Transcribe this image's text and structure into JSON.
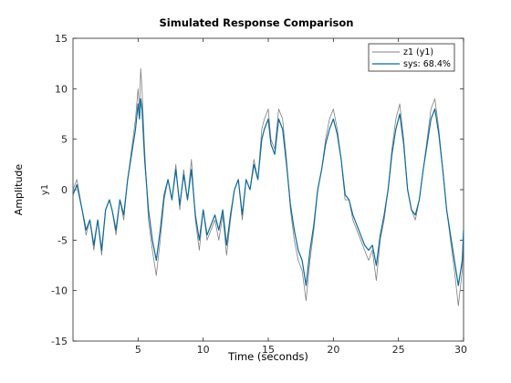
{
  "chart_data": {
    "type": "line",
    "title": "Simulated Response Comparison",
    "xlabel": "Time (seconds)",
    "ylabel": "Amplitude",
    "channel_label": "y1",
    "xlim": [
      0,
      30
    ],
    "ylim": [
      -15,
      15
    ],
    "x_ticks": [
      5,
      10,
      15,
      20,
      25,
      30
    ],
    "y_ticks": [
      15,
      10,
      5,
      0,
      -5,
      -10,
      -15
    ],
    "grid": false,
    "legend": "top-right",
    "series": [
      {
        "name": "z1 (y1)",
        "color": "#808080",
        "points": [
          [
            0,
            0
          ],
          [
            0.3,
            1
          ],
          [
            0.7,
            -2
          ],
          [
            1,
            -4.5
          ],
          [
            1.3,
            -3
          ],
          [
            1.6,
            -6
          ],
          [
            1.9,
            -3
          ],
          [
            2.2,
            -6.5
          ],
          [
            2.5,
            -2
          ],
          [
            2.8,
            -1
          ],
          [
            3,
            -2
          ],
          [
            3.3,
            -4.5
          ],
          [
            3.6,
            -1
          ],
          [
            3.9,
            -3
          ],
          [
            4.2,
            1
          ],
          [
            4.5,
            4
          ],
          [
            4.8,
            7
          ],
          [
            5,
            10
          ],
          [
            5.1,
            8
          ],
          [
            5.2,
            12
          ],
          [
            5.3,
            10
          ],
          [
            5.5,
            4
          ],
          [
            5.8,
            -3
          ],
          [
            6.1,
            -6
          ],
          [
            6.4,
            -8.5
          ],
          [
            6.7,
            -5
          ],
          [
            7,
            -1
          ],
          [
            7.3,
            1
          ],
          [
            7.6,
            -1
          ],
          [
            7.9,
            2.5
          ],
          [
            8.2,
            -2
          ],
          [
            8.5,
            2
          ],
          [
            8.8,
            -1
          ],
          [
            9.1,
            3
          ],
          [
            9.4,
            -3
          ],
          [
            9.7,
            -6
          ],
          [
            10,
            -2
          ],
          [
            10.3,
            -5
          ],
          [
            10.6,
            -4
          ],
          [
            10.9,
            -3
          ],
          [
            11.2,
            -5
          ],
          [
            11.5,
            -2.5
          ],
          [
            11.8,
            -6.5
          ],
          [
            12.1,
            -3
          ],
          [
            12.4,
            0
          ],
          [
            12.7,
            1
          ],
          [
            13,
            -3
          ],
          [
            13.3,
            1
          ],
          [
            13.6,
            0
          ],
          [
            13.9,
            3
          ],
          [
            14.2,
            1
          ],
          [
            14.5,
            6
          ],
          [
            14.7,
            7
          ],
          [
            15,
            8
          ],
          [
            15.2,
            5
          ],
          [
            15.5,
            4
          ],
          [
            15.8,
            8
          ],
          [
            16.1,
            7
          ],
          [
            16.4,
            3
          ],
          [
            16.7,
            -2
          ],
          [
            17,
            -5
          ],
          [
            17.3,
            -7
          ],
          [
            17.6,
            -8
          ],
          [
            17.9,
            -11
          ],
          [
            18.2,
            -7
          ],
          [
            18.5,
            -4
          ],
          [
            18.8,
            0
          ],
          [
            19.1,
            2
          ],
          [
            19.4,
            5
          ],
          [
            19.7,
            7
          ],
          [
            20,
            8
          ],
          [
            20.3,
            6
          ],
          [
            20.6,
            3
          ],
          [
            20.9,
            -1
          ],
          [
            21.2,
            -1
          ],
          [
            21.5,
            -3
          ],
          [
            21.8,
            -4
          ],
          [
            22.1,
            -5
          ],
          [
            22.4,
            -6
          ],
          [
            22.7,
            -7
          ],
          [
            23,
            -6
          ],
          [
            23.3,
            -9
          ],
          [
            23.6,
            -5
          ],
          [
            23.9,
            -3
          ],
          [
            24.2,
            0
          ],
          [
            24.5,
            4
          ],
          [
            24.8,
            7
          ],
          [
            25.1,
            8.5
          ],
          [
            25.4,
            5
          ],
          [
            25.7,
            0
          ],
          [
            26,
            -2
          ],
          [
            26.3,
            -3
          ],
          [
            26.6,
            -1
          ],
          [
            26.9,
            2
          ],
          [
            27.2,
            5
          ],
          [
            27.5,
            8
          ],
          [
            27.8,
            9
          ],
          [
            28.1,
            6
          ],
          [
            28.4,
            2
          ],
          [
            28.7,
            -2
          ],
          [
            29,
            -5
          ],
          [
            29.3,
            -8
          ],
          [
            29.6,
            -11.5
          ],
          [
            29.9,
            -8
          ],
          [
            30,
            -4
          ]
        ]
      },
      {
        "name": "sys: 68.4%",
        "color": "#0b6a9a",
        "points": [
          [
            0,
            -0.5
          ],
          [
            0.3,
            0.5
          ],
          [
            0.7,
            -2
          ],
          [
            1,
            -4
          ],
          [
            1.3,
            -3
          ],
          [
            1.6,
            -5.5
          ],
          [
            1.9,
            -3
          ],
          [
            2.2,
            -6
          ],
          [
            2.5,
            -2
          ],
          [
            2.8,
            -1
          ],
          [
            3,
            -2
          ],
          [
            3.3,
            -4
          ],
          [
            3.6,
            -1
          ],
          [
            3.9,
            -2.5
          ],
          [
            4.2,
            1
          ],
          [
            4.5,
            3.5
          ],
          [
            4.8,
            6
          ],
          [
            5,
            8.5
          ],
          [
            5.1,
            7
          ],
          [
            5.2,
            9
          ],
          [
            5.3,
            8
          ],
          [
            5.5,
            3
          ],
          [
            5.8,
            -2
          ],
          [
            6.1,
            -5
          ],
          [
            6.4,
            -7
          ],
          [
            6.7,
            -4
          ],
          [
            7,
            -0.5
          ],
          [
            7.3,
            1
          ],
          [
            7.6,
            -1
          ],
          [
            7.9,
            2
          ],
          [
            8.2,
            -1.5
          ],
          [
            8.5,
            1.5
          ],
          [
            8.8,
            -1
          ],
          [
            9.1,
            2
          ],
          [
            9.4,
            -2.5
          ],
          [
            9.7,
            -5
          ],
          [
            10,
            -2
          ],
          [
            10.3,
            -4.5
          ],
          [
            10.6,
            -3.5
          ],
          [
            10.9,
            -2.5
          ],
          [
            11.2,
            -4
          ],
          [
            11.5,
            -2
          ],
          [
            11.8,
            -5.5
          ],
          [
            12.1,
            -2.5
          ],
          [
            12.4,
            0
          ],
          [
            12.7,
            1
          ],
          [
            13,
            -2.5
          ],
          [
            13.3,
            1
          ],
          [
            13.6,
            0
          ],
          [
            13.9,
            2.5
          ],
          [
            14.2,
            1
          ],
          [
            14.5,
            5
          ],
          [
            14.7,
            6
          ],
          [
            15,
            7
          ],
          [
            15.2,
            4.5
          ],
          [
            15.5,
            3.5
          ],
          [
            15.8,
            7
          ],
          [
            16.1,
            6
          ],
          [
            16.4,
            2.5
          ],
          [
            16.7,
            -1.5
          ],
          [
            17,
            -4
          ],
          [
            17.3,
            -6
          ],
          [
            17.6,
            -7
          ],
          [
            17.9,
            -9.5
          ],
          [
            18.2,
            -6
          ],
          [
            18.5,
            -3.5
          ],
          [
            18.8,
            0
          ],
          [
            19.1,
            2
          ],
          [
            19.4,
            4.5
          ],
          [
            19.7,
            6
          ],
          [
            20,
            7
          ],
          [
            20.3,
            5.5
          ],
          [
            20.6,
            3
          ],
          [
            20.9,
            -0.5
          ],
          [
            21.2,
            -1
          ],
          [
            21.5,
            -2.5
          ],
          [
            21.8,
            -3.5
          ],
          [
            22.1,
            -4.5
          ],
          [
            22.4,
            -5.5
          ],
          [
            22.7,
            -6
          ],
          [
            23,
            -5.5
          ],
          [
            23.3,
            -7.5
          ],
          [
            23.6,
            -4.5
          ],
          [
            23.9,
            -2.5
          ],
          [
            24.2,
            0
          ],
          [
            24.5,
            3.5
          ],
          [
            24.8,
            6
          ],
          [
            25.1,
            7.5
          ],
          [
            25.4,
            4.5
          ],
          [
            25.7,
            0
          ],
          [
            26,
            -2
          ],
          [
            26.3,
            -2.5
          ],
          [
            26.6,
            -1
          ],
          [
            26.9,
            2
          ],
          [
            27.2,
            4.5
          ],
          [
            27.5,
            7
          ],
          [
            27.8,
            8
          ],
          [
            28.1,
            5.5
          ],
          [
            28.4,
            2
          ],
          [
            28.7,
            -2
          ],
          [
            29,
            -4.5
          ],
          [
            29.3,
            -7
          ],
          [
            29.6,
            -9.5
          ],
          [
            29.9,
            -7
          ],
          [
            30,
            -4
          ]
        ]
      }
    ]
  }
}
